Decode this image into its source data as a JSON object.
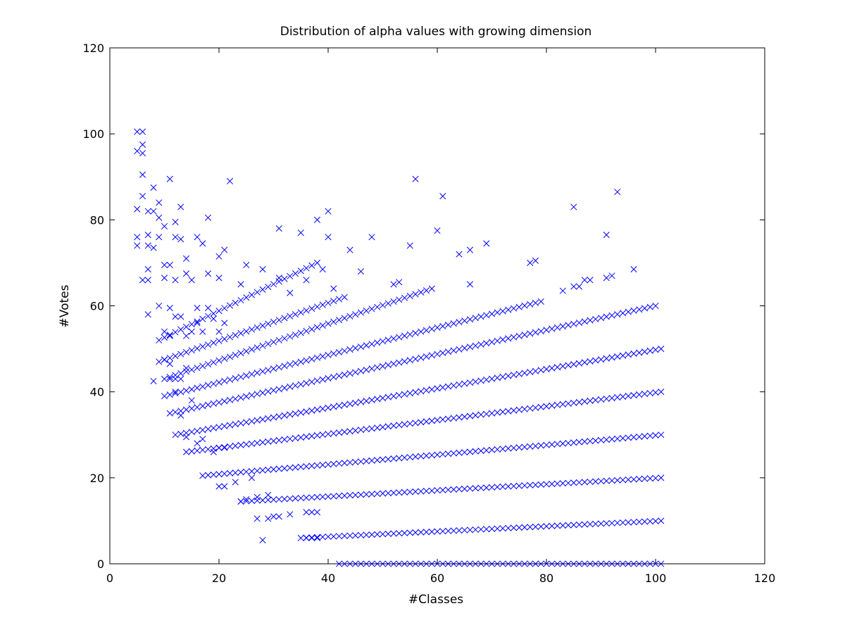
{
  "chart_data": {
    "type": "scatter",
    "title": "Distribution of alpha values with growing dimension",
    "xlabel": "#Classes",
    "ylabel": "#Votes",
    "xlim": [
      0,
      120
    ],
    "ylim": [
      0,
      120
    ],
    "xticks": [
      0,
      20,
      40,
      60,
      80,
      100,
      120
    ],
    "yticks": [
      0,
      20,
      40,
      60,
      80,
      100,
      120
    ],
    "marker": "x",
    "marker_color": "#0000ff",
    "grid": false,
    "series": [
      {
        "bands": [
          {
            "level": 0,
            "x_start": 42,
            "x_end": 101,
            "y_start": 0,
            "y_end": 0
          },
          {
            "level": 1,
            "x_start": 35,
            "x_end": 101,
            "y_start": 6,
            "y_end": 10
          },
          {
            "level": 2,
            "x_start": 24,
            "x_end": 101,
            "y_start": 14.5,
            "y_end": 20
          },
          {
            "level": 3,
            "x_start": 17,
            "x_end": 101,
            "y_start": 20.5,
            "y_end": 30
          },
          {
            "level": 4,
            "x_start": 14,
            "x_end": 101,
            "y_start": 26,
            "y_end": 40
          },
          {
            "level": 5,
            "x_start": 12,
            "x_end": 101,
            "y_start": 30,
            "y_end": 50
          },
          {
            "level": 6,
            "x_start": 11,
            "x_end": 100,
            "y_start": 35,
            "y_end": 60
          },
          {
            "level": 7,
            "x_start": 10,
            "x_end": 79,
            "y_start": 39,
            "y_end": 61
          },
          {
            "level": 8,
            "x_start": 10,
            "x_end": 59,
            "y_start": 43,
            "y_end": 64
          },
          {
            "level": 9,
            "x_start": 9,
            "x_end": 43,
            "y_start": 47,
            "y_end": 62
          },
          {
            "level": 10,
            "x_start": 9,
            "x_end": 38,
            "y_start": 52,
            "y_end": 70
          }
        ],
        "points": [
          [
            5,
            100.5
          ],
          [
            6,
            100.5
          ],
          [
            5,
            96
          ],
          [
            6,
            97.5
          ],
          [
            6,
            95.5
          ],
          [
            6,
            90.5
          ],
          [
            11,
            89.5
          ],
          [
            22,
            89
          ],
          [
            56,
            89.5
          ],
          [
            61,
            85.5
          ],
          [
            93,
            86.5
          ],
          [
            8,
            87.5
          ],
          [
            6,
            85.5
          ],
          [
            5,
            82.5
          ],
          [
            7,
            82
          ],
          [
            8,
            82
          ],
          [
            9,
            84
          ],
          [
            13,
            83
          ],
          [
            18,
            80.5
          ],
          [
            40,
            82
          ],
          [
            85,
            83
          ],
          [
            9,
            80.5
          ],
          [
            12,
            79.5
          ],
          [
            10,
            78.5
          ],
          [
            38,
            80
          ],
          [
            31,
            78
          ],
          [
            60,
            77.5
          ],
          [
            5,
            76
          ],
          [
            7,
            76.5
          ],
          [
            9,
            76
          ],
          [
            12,
            76
          ],
          [
            13,
            75.5
          ],
          [
            16,
            76
          ],
          [
            35,
            77
          ],
          [
            40,
            76
          ],
          [
            48,
            76
          ],
          [
            91,
            76.5
          ],
          [
            5,
            74
          ],
          [
            7,
            74
          ],
          [
            8,
            73.5
          ],
          [
            17,
            74.5
          ],
          [
            21,
            73
          ],
          [
            44,
            73
          ],
          [
            55,
            74
          ],
          [
            64,
            72
          ],
          [
            66,
            73
          ],
          [
            69,
            74.5
          ],
          [
            20,
            71.5
          ],
          [
            14,
            71
          ],
          [
            77,
            70
          ],
          [
            78,
            70.5
          ],
          [
            96,
            68.5
          ],
          [
            11,
            69.5
          ],
          [
            10,
            69.5
          ],
          [
            7,
            68.5
          ],
          [
            25,
            69.5
          ],
          [
            28,
            68.5
          ],
          [
            39,
            68.5
          ],
          [
            46,
            68
          ],
          [
            18,
            67.5
          ],
          [
            31,
            66.5
          ],
          [
            6,
            66
          ],
          [
            7,
            66
          ],
          [
            10,
            66.5
          ],
          [
            12,
            66
          ],
          [
            14,
            67.5
          ],
          [
            15,
            66
          ],
          [
            20,
            66.5
          ],
          [
            24,
            65
          ],
          [
            33,
            63
          ],
          [
            36,
            66
          ],
          [
            41,
            64
          ],
          [
            52,
            65
          ],
          [
            53,
            65.5
          ],
          [
            66,
            65
          ],
          [
            87,
            66
          ],
          [
            88,
            66
          ],
          [
            91,
            66.5
          ],
          [
            92,
            67
          ],
          [
            85,
            64.5
          ],
          [
            83,
            63.5
          ],
          [
            86,
            64.5
          ],
          [
            9,
            60
          ],
          [
            11,
            59.5
          ],
          [
            7,
            58
          ],
          [
            12,
            57.5
          ],
          [
            13,
            57.5
          ],
          [
            16,
            59.5
          ],
          [
            18,
            59.5
          ],
          [
            19,
            57
          ],
          [
            21,
            56
          ],
          [
            16,
            56
          ],
          [
            10,
            54
          ],
          [
            11,
            53
          ],
          [
            14,
            53
          ],
          [
            15,
            54
          ],
          [
            17,
            54
          ],
          [
            20,
            54
          ],
          [
            10,
            47.5
          ],
          [
            11,
            46.5
          ],
          [
            11,
            43
          ],
          [
            8,
            42.5
          ],
          [
            12,
            43
          ],
          [
            13,
            43
          ],
          [
            14,
            45.5
          ],
          [
            12,
            40
          ],
          [
            15,
            38
          ],
          [
            13,
            34.5
          ],
          [
            14,
            29.5
          ],
          [
            16,
            28
          ],
          [
            17,
            29
          ],
          [
            19,
            26
          ],
          [
            20,
            27
          ],
          [
            21,
            27
          ],
          [
            20,
            18
          ],
          [
            21,
            18
          ],
          [
            23,
            19
          ],
          [
            24,
            14.5
          ],
          [
            25,
            15
          ],
          [
            26,
            20
          ],
          [
            27,
            10.5
          ],
          [
            27,
            15.5
          ],
          [
            28,
            5.5
          ],
          [
            29,
            10.5
          ],
          [
            29,
            16
          ],
          [
            30,
            11
          ],
          [
            31,
            11
          ],
          [
            33,
            11.5
          ],
          [
            36,
            6
          ],
          [
            37,
            6
          ],
          [
            38,
            6
          ],
          [
            36,
            12
          ],
          [
            37,
            12
          ],
          [
            38,
            12
          ]
        ]
      }
    ]
  }
}
